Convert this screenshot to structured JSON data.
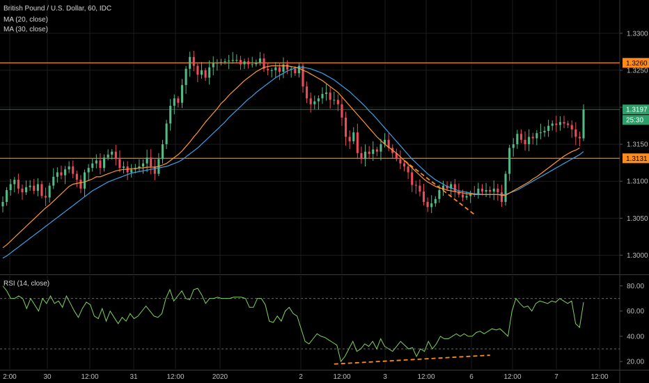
{
  "legend": {
    "title": "British Pound / U.S. Dollar, 60, IDC",
    "ma20": "MA (20, close)",
    "ma30": "MA (30, close)",
    "rsi": "RSI (14, close)"
  },
  "colors": {
    "up": "#53b987",
    "down": "#eb4d5c",
    "ma20": "#ff9a2e",
    "ma30": "#3ca2e8",
    "level": "#ff8c1a",
    "rsi": "#7fd45a",
    "grid": "#1c1c1c"
  },
  "chart_data": [
    {
      "type": "candlestick",
      "title": "British Pound / U.S. Dollar, 60, IDC",
      "ylim": [
        1.2975,
        1.3345
      ],
      "y_ticks": [
        "1.3000",
        "1.3050",
        "1.3100",
        "1.3150",
        "1.3200",
        "1.3250",
        "1.3300"
      ],
      "x_ticks": [
        "2:00",
        "30",
        "12:00",
        "31",
        "12:00",
        "2020",
        "2",
        "12:00",
        "3",
        "12:00",
        "6",
        "12:00",
        "7",
        "12:00"
      ],
      "horizontal_levels": [
        {
          "price": 1.326,
          "label": "1.3260"
        },
        {
          "price": 1.3131,
          "label": "1.3131"
        }
      ],
      "last_price": {
        "price": 1.3197,
        "label": "1.3197",
        "countdown": "25:30"
      },
      "closes": [
        1.3072,
        1.3088,
        1.3096,
        1.3102,
        1.309,
        1.3085,
        1.3092,
        1.3094,
        1.3087,
        1.3096,
        1.308,
        1.3078,
        1.3094,
        1.3106,
        1.3112,
        1.3108,
        1.3116,
        1.312,
        1.311,
        1.3102,
        1.309,
        1.3112,
        1.3118,
        1.3124,
        1.3128,
        1.3118,
        1.3132,
        1.3136,
        1.314,
        1.313,
        1.3118,
        1.312,
        1.3112,
        1.3116,
        1.3118,
        1.312,
        1.3124,
        1.3132,
        1.312,
        1.311,
        1.313,
        1.315,
        1.3178,
        1.3202,
        1.3212,
        1.3206,
        1.323,
        1.3252,
        1.3268,
        1.3256,
        1.3244,
        1.325,
        1.324,
        1.3254,
        1.326,
        1.326,
        1.3261,
        1.3262,
        1.3263,
        1.3264,
        1.3264,
        1.3258,
        1.3262,
        1.3258,
        1.3258,
        1.326,
        1.3266,
        1.3252,
        1.325,
        1.325,
        1.3254,
        1.3248,
        1.3258,
        1.3251,
        1.3252,
        1.3246,
        1.3256,
        1.3228,
        1.3212,
        1.3204,
        1.3208,
        1.3212,
        1.3218,
        1.322,
        1.321,
        1.321,
        1.3204,
        1.3186,
        1.316,
        1.3154,
        1.3166,
        1.3138,
        1.313,
        1.314,
        1.3137,
        1.3143,
        1.314,
        1.315,
        1.3156,
        1.3145,
        1.3138,
        1.313,
        1.3124,
        1.312,
        1.3112,
        1.3095,
        1.3094,
        1.3086,
        1.3072,
        1.3065,
        1.307,
        1.3076,
        1.3088,
        1.3094,
        1.309,
        1.3096,
        1.3086,
        1.3082,
        1.3078,
        1.308,
        1.3083,
        1.3082,
        1.309,
        1.3086,
        1.3088,
        1.3086,
        1.309,
        1.3085,
        1.3072,
        1.311,
        1.3145,
        1.315,
        1.3164,
        1.3156,
        1.315,
        1.316,
        1.3158,
        1.3165,
        1.3166,
        1.3168,
        1.3175,
        1.3178,
        1.3176,
        1.318,
        1.3178,
        1.3176,
        1.317,
        1.316,
        1.3158,
        1.3197
      ],
      "ma20": [
        1.301,
        1.3014,
        1.3019,
        1.3024,
        1.3029,
        1.3034,
        1.3039,
        1.3044,
        1.3049,
        1.3054,
        1.3059,
        1.3064,
        1.3068,
        1.3073,
        1.3078,
        1.3083,
        1.3088,
        1.3093,
        1.3096,
        1.3097,
        1.3098,
        1.3099,
        1.3101,
        1.3103,
        1.3106,
        1.3106,
        1.3108,
        1.311,
        1.3112,
        1.3114,
        1.3115,
        1.3116,
        1.3116,
        1.3117,
        1.3117,
        1.3118,
        1.3118,
        1.3119,
        1.3119,
        1.3119,
        1.312,
        1.3122,
        1.3124,
        1.3128,
        1.3132,
        1.3136,
        1.3141,
        1.3147,
        1.3153,
        1.316,
        1.3166,
        1.3173,
        1.318,
        1.3186,
        1.3192,
        1.3198,
        1.3205,
        1.321,
        1.3216,
        1.3221,
        1.3226,
        1.3231,
        1.3236,
        1.324,
        1.3244,
        1.3248,
        1.3251,
        1.3254,
        1.3255,
        1.3256,
        1.3256,
        1.3256,
        1.3256,
        1.3256,
        1.3255,
        1.3254,
        1.3253,
        1.325,
        1.3248,
        1.3245,
        1.3242,
        1.3239,
        1.3236,
        1.3232,
        1.3228,
        1.3224,
        1.322,
        1.3214,
        1.3208,
        1.3202,
        1.3196,
        1.319,
        1.3184,
        1.3178,
        1.3172,
        1.3166,
        1.316,
        1.3155,
        1.315,
        1.3146,
        1.3142,
        1.3138,
        1.3133,
        1.3128,
        1.3123,
        1.3118,
        1.3113,
        1.3108,
        1.3103,
        1.3099,
        1.3096,
        1.3093,
        1.3091,
        1.309,
        1.3088,
        1.3087,
        1.3086,
        1.3085,
        1.3084,
        1.3083,
        1.3083,
        1.3082,
        1.3082,
        1.3082,
        1.3082,
        1.3082,
        1.3082,
        1.3082,
        1.3081,
        1.3081,
        1.3084,
        1.3087,
        1.309,
        1.3093,
        1.3096,
        1.3099,
        1.3103,
        1.3106,
        1.311,
        1.3114,
        1.3118,
        1.3122,
        1.3126,
        1.313,
        1.3134,
        1.3137,
        1.314,
        1.3142,
        1.3145
      ],
      "ma30": [
        1.2996,
        1.2999,
        1.3003,
        1.3007,
        1.3011,
        1.3015,
        1.3019,
        1.3023,
        1.3027,
        1.3031,
        1.3035,
        1.3039,
        1.3043,
        1.3047,
        1.3051,
        1.3055,
        1.3059,
        1.3063,
        1.3067,
        1.3071,
        1.3075,
        1.3079,
        1.3083,
        1.3087,
        1.309,
        1.3093,
        1.3096,
        1.3099,
        1.3101,
        1.3103,
        1.3105,
        1.3107,
        1.3109,
        1.3111,
        1.3112,
        1.3113,
        1.3114,
        1.3115,
        1.3116,
        1.3117,
        1.3118,
        1.3119,
        1.312,
        1.3122,
        1.3124,
        1.3126,
        1.3129,
        1.3133,
        1.3137,
        1.3141,
        1.3145,
        1.315,
        1.3155,
        1.316,
        1.3165,
        1.317,
        1.3175,
        1.318,
        1.3186,
        1.3191,
        1.3196,
        1.3201,
        1.3206,
        1.3211,
        1.3215,
        1.322,
        1.3224,
        1.3228,
        1.3232,
        1.3236,
        1.324,
        1.3243,
        1.3246,
        1.3249,
        1.3251,
        1.3253,
        1.3254,
        1.3254,
        1.3253,
        1.3252,
        1.325,
        1.3248,
        1.3246,
        1.3243,
        1.324,
        1.3237,
        1.3233,
        1.3229,
        1.3225,
        1.3221,
        1.3216,
        1.3211,
        1.3206,
        1.3201,
        1.3195,
        1.319,
        1.3184,
        1.3178,
        1.3172,
        1.3166,
        1.316,
        1.3154,
        1.3148,
        1.3142,
        1.3136,
        1.313,
        1.3125,
        1.312,
        1.3115,
        1.311,
        1.3106,
        1.3102,
        1.3099,
        1.3096,
        1.3093,
        1.3091,
        1.3089,
        1.3087,
        1.3086,
        1.3085,
        1.3084,
        1.3083,
        1.3083,
        1.3082,
        1.3082,
        1.3082,
        1.3082,
        1.3082,
        1.3082,
        1.3082,
        1.3084,
        1.3086,
        1.3088,
        1.3091,
        1.3094,
        1.3097,
        1.31,
        1.3103,
        1.3106,
        1.3109,
        1.3112,
        1.3115,
        1.3118,
        1.3121,
        1.3124,
        1.3127,
        1.313,
        1.3133,
        1.3136,
        1.314
      ]
    },
    {
      "type": "line",
      "title": "RSI (14, close)",
      "ylim": [
        14,
        88
      ],
      "y_ticks": [
        "20.00",
        "40.00",
        "60.00",
        "80.00"
      ],
      "reference_levels": [
        70,
        30
      ],
      "series": [
        {
          "values": [
            80,
            76,
            70,
            70,
            72,
            70,
            62,
            70,
            65,
            60,
            70,
            66,
            72,
            66,
            68,
            63,
            72,
            66,
            60,
            55,
            62,
            67,
            65,
            56,
            54,
            62,
            52,
            60,
            55,
            50,
            55,
            52,
            58,
            54,
            56,
            60,
            64,
            60,
            56,
            55,
            58,
            70,
            77,
            68,
            72,
            76,
            70,
            69,
            77,
            78,
            73,
            66,
            70,
            70,
            71,
            70,
            70,
            70,
            71,
            71,
            71,
            70,
            63,
            63,
            70,
            70,
            65,
            52,
            51,
            56,
            52,
            60,
            63,
            58,
            56,
            46,
            36,
            34,
            38,
            42,
            40,
            39,
            37,
            35,
            33,
            20,
            24,
            30,
            36,
            28,
            30,
            34,
            32,
            36,
            30,
            38,
            32,
            30,
            28,
            32,
            36,
            33,
            30,
            31,
            24,
            30,
            28,
            36,
            30,
            34,
            40,
            38,
            38,
            40,
            42,
            40,
            42,
            40,
            40,
            43,
            44,
            42,
            44,
            46,
            45,
            46,
            43,
            40,
            60,
            70,
            66,
            63,
            64,
            60,
            66,
            68,
            67,
            66,
            68,
            67,
            70,
            68,
            66,
            68,
            50,
            47,
            67
          ]
        }
      ]
    }
  ]
}
